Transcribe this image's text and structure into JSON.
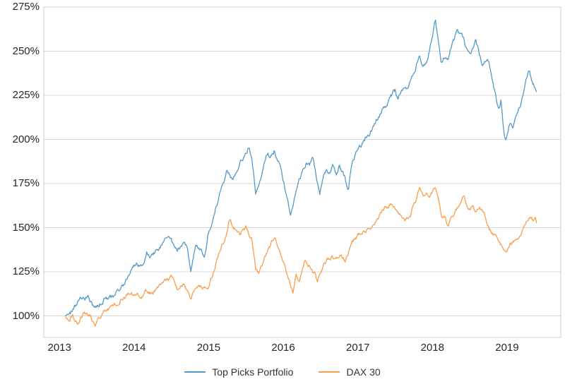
{
  "chart_data": {
    "type": "line",
    "title": "",
    "xlabel": "",
    "ylabel": "",
    "x_unit": "year",
    "x_ticks": [
      2013,
      2014,
      2015,
      2016,
      2017,
      2018,
      2019
    ],
    "y_ticks": [
      275,
      250,
      225,
      200,
      175,
      150,
      125,
      100
    ],
    "y_tick_suffix": "%",
    "x_range": [
      2012.79,
      2019.72
    ],
    "y_range": [
      87.8,
      275
    ],
    "grid": "horizontal-only",
    "legend_position": "bottom-center",
    "background": "#ffffff",
    "grid_color": "#d9d9d9",
    "axis_border_color": "#cfcfcf",
    "tick_text_color": "#262626",
    "legend_text_color": "#333333",
    "noise_step_years": 0.0082,
    "series": [
      {
        "name": "Top Picks Portfolio",
        "color": "#5599c8",
        "line_width": 1.3,
        "seed": 20137,
        "noise_amp": 1.0,
        "points": [
          [
            2013.08,
            100
          ],
          [
            2013.17,
            103
          ],
          [
            2013.25,
            108
          ],
          [
            2013.33,
            111
          ],
          [
            2013.38,
            112
          ],
          [
            2013.45,
            106
          ],
          [
            2013.53,
            105
          ],
          [
            2013.61,
            111
          ],
          [
            2013.69,
            110
          ],
          [
            2013.77,
            115
          ],
          [
            2013.85,
            117
          ],
          [
            2013.92,
            121
          ],
          [
            2013.97,
            127
          ],
          [
            2014.04,
            130
          ],
          [
            2014.1,
            128
          ],
          [
            2014.17,
            135
          ],
          [
            2014.25,
            133
          ],
          [
            2014.33,
            138
          ],
          [
            2014.42,
            143
          ],
          [
            2014.5,
            141
          ],
          [
            2014.58,
            136
          ],
          [
            2014.67,
            142
          ],
          [
            2014.71,
            138
          ],
          [
            2014.76,
            124
          ],
          [
            2014.83,
            141
          ],
          [
            2014.88,
            138
          ],
          [
            2014.94,
            134
          ],
          [
            2015.0,
            148
          ],
          [
            2015.08,
            160
          ],
          [
            2015.17,
            172
          ],
          [
            2015.25,
            183
          ],
          [
            2015.29,
            180
          ],
          [
            2015.33,
            178
          ],
          [
            2015.42,
            187
          ],
          [
            2015.5,
            192
          ],
          [
            2015.54,
            196
          ],
          [
            2015.58,
            188
          ],
          [
            2015.63,
            171
          ],
          [
            2015.67,
            176
          ],
          [
            2015.71,
            181
          ],
          [
            2015.75,
            189
          ],
          [
            2015.79,
            193
          ],
          [
            2015.83,
            190
          ],
          [
            2015.88,
            194
          ],
          [
            2015.92,
            189
          ],
          [
            2015.96,
            185
          ],
          [
            2016.04,
            170
          ],
          [
            2016.1,
            157
          ],
          [
            2016.15,
            168
          ],
          [
            2016.21,
            176
          ],
          [
            2016.25,
            181
          ],
          [
            2016.3,
            186
          ],
          [
            2016.35,
            184
          ],
          [
            2016.4,
            190
          ],
          [
            2016.46,
            174
          ],
          [
            2016.49,
            169
          ],
          [
            2016.54,
            180
          ],
          [
            2016.58,
            184
          ],
          [
            2016.63,
            181
          ],
          [
            2016.67,
            184
          ],
          [
            2016.71,
            180
          ],
          [
            2016.75,
            185
          ],
          [
            2016.79,
            182
          ],
          [
            2016.83,
            178
          ],
          [
            2016.87,
            172
          ],
          [
            2016.92,
            186
          ],
          [
            2016.96,
            190
          ],
          [
            2017.0,
            193
          ],
          [
            2017.08,
            198
          ],
          [
            2017.17,
            205
          ],
          [
            2017.25,
            211
          ],
          [
            2017.33,
            216
          ],
          [
            2017.42,
            222
          ],
          [
            2017.46,
            225
          ],
          [
            2017.5,
            227
          ],
          [
            2017.54,
            224
          ],
          [
            2017.58,
            227
          ],
          [
            2017.63,
            231
          ],
          [
            2017.67,
            228
          ],
          [
            2017.75,
            238
          ],
          [
            2017.79,
            243
          ],
          [
            2017.83,
            247
          ],
          [
            2017.88,
            241
          ],
          [
            2017.92,
            244
          ],
          [
            2017.96,
            250
          ],
          [
            2018.0,
            258
          ],
          [
            2018.04,
            267
          ],
          [
            2018.08,
            256
          ],
          [
            2018.12,
            243
          ],
          [
            2018.17,
            247
          ],
          [
            2018.21,
            244
          ],
          [
            2018.25,
            250
          ],
          [
            2018.29,
            255
          ],
          [
            2018.33,
            263
          ],
          [
            2018.38,
            259
          ],
          [
            2018.42,
            256
          ],
          [
            2018.46,
            250
          ],
          [
            2018.5,
            248
          ],
          [
            2018.54,
            252
          ],
          [
            2018.58,
            256
          ],
          [
            2018.63,
            248
          ],
          [
            2018.67,
            243
          ],
          [
            2018.71,
            246
          ],
          [
            2018.75,
            245
          ],
          [
            2018.79,
            236
          ],
          [
            2018.83,
            228
          ],
          [
            2018.88,
            217
          ],
          [
            2018.92,
            222
          ],
          [
            2018.96,
            203
          ],
          [
            2018.99,
            200
          ],
          [
            2019.04,
            210
          ],
          [
            2019.08,
            208
          ],
          [
            2019.12,
            214
          ],
          [
            2019.17,
            218
          ],
          [
            2019.21,
            224
          ],
          [
            2019.25,
            231
          ],
          [
            2019.29,
            238
          ],
          [
            2019.31,
            236
          ],
          [
            2019.33,
            232
          ],
          [
            2019.37,
            230
          ],
          [
            2019.4,
            226
          ]
        ]
      },
      {
        "name": "DAX 30",
        "color": "#fb9d4b",
        "line_width": 1.3,
        "seed": 30981,
        "noise_amp": 0.85,
        "points": [
          [
            2013.08,
            99
          ],
          [
            2013.13,
            97
          ],
          [
            2013.17,
            100
          ],
          [
            2013.21,
            97
          ],
          [
            2013.25,
            96
          ],
          [
            2013.33,
            102
          ],
          [
            2013.42,
            99
          ],
          [
            2013.48,
            94
          ],
          [
            2013.54,
            99
          ],
          [
            2013.58,
            102
          ],
          [
            2013.67,
            104
          ],
          [
            2013.75,
            107
          ],
          [
            2013.83,
            110
          ],
          [
            2013.92,
            112
          ],
          [
            2014.0,
            112
          ],
          [
            2014.08,
            110
          ],
          [
            2014.17,
            114
          ],
          [
            2014.25,
            113
          ],
          [
            2014.33,
            116
          ],
          [
            2014.42,
            119
          ],
          [
            2014.5,
            121
          ],
          [
            2014.58,
            114
          ],
          [
            2014.67,
            119
          ],
          [
            2014.76,
            108
          ],
          [
            2014.83,
            117
          ],
          [
            2014.92,
            115
          ],
          [
            2015.0,
            117
          ],
          [
            2015.08,
            127
          ],
          [
            2015.17,
            138
          ],
          [
            2015.25,
            148
          ],
          [
            2015.28,
            155
          ],
          [
            2015.33,
            150
          ],
          [
            2015.42,
            146
          ],
          [
            2015.5,
            150
          ],
          [
            2015.58,
            143
          ],
          [
            2015.63,
            126
          ],
          [
            2015.67,
            124
          ],
          [
            2015.75,
            132
          ],
          [
            2015.83,
            140
          ],
          [
            2015.88,
            145
          ],
          [
            2015.96,
            136
          ],
          [
            2016.04,
            125
          ],
          [
            2016.13,
            113
          ],
          [
            2016.17,
            124
          ],
          [
            2016.21,
            120
          ],
          [
            2016.29,
            131
          ],
          [
            2016.38,
            128
          ],
          [
            2016.46,
            120
          ],
          [
            2016.54,
            130
          ],
          [
            2016.63,
            133
          ],
          [
            2016.71,
            134
          ],
          [
            2016.79,
            134
          ],
          [
            2016.83,
            132
          ],
          [
            2016.92,
            142
          ],
          [
            2017.0,
            146
          ],
          [
            2017.08,
            148
          ],
          [
            2017.17,
            151
          ],
          [
            2017.29,
            156
          ],
          [
            2017.38,
            162
          ],
          [
            2017.46,
            164
          ],
          [
            2017.54,
            159
          ],
          [
            2017.63,
            153
          ],
          [
            2017.71,
            158
          ],
          [
            2017.79,
            166
          ],
          [
            2017.83,
            172
          ],
          [
            2017.88,
            167
          ],
          [
            2017.92,
            169
          ],
          [
            2017.96,
            166
          ],
          [
            2018.04,
            173
          ],
          [
            2018.12,
            157
          ],
          [
            2018.17,
            155
          ],
          [
            2018.21,
            150
          ],
          [
            2018.29,
            158
          ],
          [
            2018.35,
            162
          ],
          [
            2018.42,
            169
          ],
          [
            2018.5,
            161
          ],
          [
            2018.54,
            164
          ],
          [
            2018.58,
            160
          ],
          [
            2018.63,
            162
          ],
          [
            2018.67,
            159
          ],
          [
            2018.71,
            156
          ],
          [
            2018.76,
            149
          ],
          [
            2018.83,
            146
          ],
          [
            2018.88,
            143
          ],
          [
            2018.92,
            140
          ],
          [
            2018.98,
            134
          ],
          [
            2019.04,
            140
          ],
          [
            2019.12,
            144
          ],
          [
            2019.17,
            146
          ],
          [
            2019.23,
            151
          ],
          [
            2019.3,
            157
          ],
          [
            2019.35,
            154
          ],
          [
            2019.38,
            156
          ],
          [
            2019.4,
            151
          ]
        ]
      }
    ]
  },
  "legend": {
    "items": [
      {
        "label": "Top Picks Portfolio"
      },
      {
        "label": "DAX 30"
      }
    ]
  }
}
